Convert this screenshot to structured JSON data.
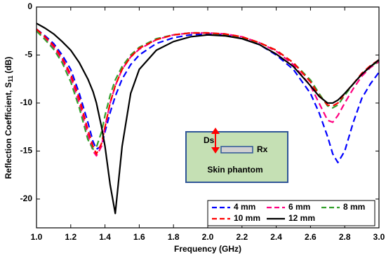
{
  "chart_data": {
    "type": "line",
    "x_label": "Frequency (GHz)",
    "y_label": "Reflection Coefficient, S",
    "y_label_sub": "11",
    "y_label_unit": "(dB)",
    "xlim": [
      1,
      3
    ],
    "ylim": [
      -23,
      0
    ],
    "xticks": [
      {
        "value": 1,
        "label": "1.0"
      },
      1.2,
      1.4,
      1.6,
      1.8,
      {
        "value": 2,
        "label": "2.0"
      },
      2.2,
      2.4,
      2.6,
      2.8,
      {
        "value": 3,
        "label": "3.0"
      }
    ],
    "yticks": [
      0,
      -5,
      -10,
      -15,
      -20
    ],
    "grid": false,
    "legend": "lower right",
    "x": [
      1.0,
      1.05,
      1.1,
      1.15,
      1.2,
      1.25,
      1.3,
      1.33,
      1.35,
      1.38,
      1.4,
      1.43,
      1.46,
      1.5,
      1.55,
      1.6,
      1.7,
      1.8,
      1.9,
      2.0,
      2.1,
      2.2,
      2.3,
      2.4,
      2.5,
      2.6,
      2.65,
      2.7,
      2.73,
      2.76,
      2.8,
      2.85,
      2.9,
      2.95,
      3.0
    ],
    "series": [
      {
        "name": "4 mm",
        "color": "#0000ff",
        "dash": true,
        "values": [
          -2.3,
          -3,
          -3.8,
          -5,
          -6.5,
          -9,
          -12,
          -14,
          -14.8,
          -14.5,
          -13,
          -11,
          -9.3,
          -7.5,
          -6,
          -5,
          -3.8,
          -3.2,
          -2.9,
          -2.8,
          -2.9,
          -3.3,
          -3.9,
          -5,
          -6.5,
          -9,
          -11,
          -13.5,
          -15.3,
          -16.2,
          -15,
          -12,
          -9.5,
          -8,
          -6.8
        ]
      },
      {
        "name": "6 mm",
        "color": "#ff0080",
        "dash": true,
        "values": [
          -2.4,
          -3.2,
          -4.2,
          -5.5,
          -7.3,
          -10,
          -13.3,
          -15,
          -15.5,
          -14.5,
          -12.5,
          -10,
          -8.2,
          -6.5,
          -5.2,
          -4.4,
          -3.4,
          -2.9,
          -2.7,
          -2.7,
          -2.8,
          -3.1,
          -3.7,
          -4.6,
          -6,
          -8.2,
          -10,
          -11.8,
          -12,
          -11.3,
          -10,
          -8.5,
          -7.2,
          -6.3,
          -5.7
        ]
      },
      {
        "name": "8 mm",
        "color": "#33a02c",
        "dash": true,
        "values": [
          -2.5,
          -3.4,
          -4.4,
          -5.8,
          -7.8,
          -10.5,
          -13.8,
          -14.8,
          -14.6,
          -13,
          -11.3,
          -9.2,
          -7.6,
          -6.2,
          -5,
          -4.2,
          -3.3,
          -2.9,
          -2.7,
          -2.7,
          -2.9,
          -3.2,
          -3.7,
          -4.5,
          -5.8,
          -7.6,
          -9,
          -10.3,
          -10.5,
          -10.2,
          -9.2,
          -8,
          -7,
          -6.2,
          -5.6
        ]
      },
      {
        "name": "10 mm",
        "color": "#ff0000",
        "dash": true,
        "values": [
          -2.3,
          -3.1,
          -4,
          -5.3,
          -7,
          -9.5,
          -12.8,
          -14.5,
          -15.3,
          -14.2,
          -12.5,
          -10,
          -8.2,
          -6.5,
          -5.2,
          -4.3,
          -3.4,
          -2.9,
          -2.7,
          -2.7,
          -2.8,
          -3.1,
          -3.7,
          -4.5,
          -5.8,
          -7.8,
          -9.2,
          -10.2,
          -10.3,
          -10,
          -9,
          -8,
          -6.9,
          -6.1,
          -5.5
        ]
      },
      {
        "name": "12 mm",
        "color": "#000000",
        "dash": false,
        "values": [
          -1.7,
          -2.2,
          -2.8,
          -3.6,
          -4.5,
          -5.8,
          -7.5,
          -8.8,
          -10,
          -12.5,
          -14.5,
          -18.5,
          -21.5,
          -14.5,
          -9,
          -6.5,
          -4.5,
          -3.6,
          -3.1,
          -2.9,
          -3,
          -3.3,
          -3.9,
          -4.9,
          -6.2,
          -8.2,
          -9.3,
          -10,
          -10,
          -9.7,
          -9,
          -8,
          -7,
          -6.2,
          -5.5
        ]
      }
    ],
    "inset": {
      "depth_label": "Ds",
      "receiver_label": "Rx",
      "phantom_label": "Skin phantom"
    }
  }
}
